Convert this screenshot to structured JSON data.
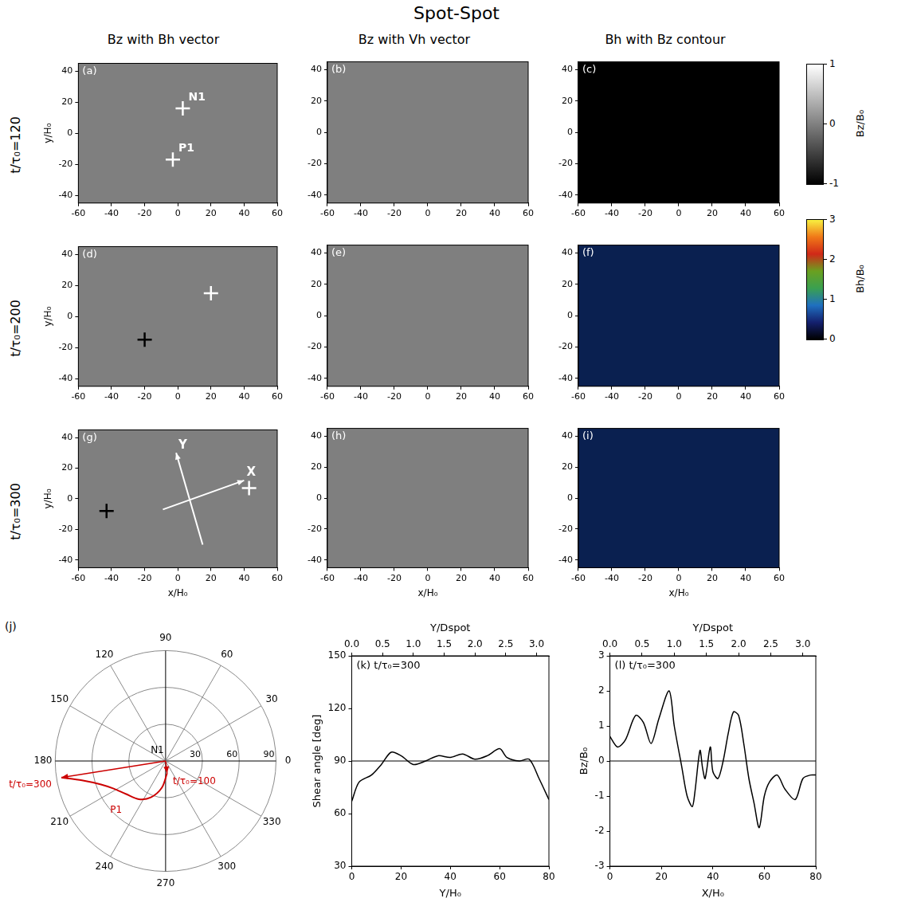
{
  "title": "Spot-Spot",
  "column_titles": [
    "Bz with Bh vector",
    "Bz with Vh vector",
    "Bh with Bz contour"
  ],
  "row_titles": [
    "t/τ₀=120",
    "t/τ₀=200",
    "t/τ₀=300"
  ],
  "colorbars": [
    {
      "label": "Bz/B₀",
      "range": [
        -1,
        1
      ],
      "ticks": [
        -1,
        0,
        1
      ],
      "colors": [
        "#000000",
        "#ffffff"
      ]
    },
    {
      "label": "Bh/B₀",
      "range": [
        0,
        3
      ],
      "ticks": [
        0,
        1,
        2,
        3
      ],
      "colors": [
        "#000000",
        "#14206e",
        "#1f70c0",
        "#3aa050",
        "#6aa020",
        "#d02818",
        "#f07818",
        "#f8f040"
      ]
    }
  ],
  "chart_data": [
    {
      "type": "map",
      "letter": "(a)",
      "color": "#7f7f7f",
      "marker": "cross",
      "ylabel": "y/H₀",
      "xlim": [
        -60,
        60
      ],
      "xticks": [
        -60,
        -40,
        -20,
        0,
        20,
        40,
        60
      ],
      "ylim": [
        -45,
        45
      ],
      "yticks": [
        -40,
        -20,
        0,
        20,
        40
      ],
      "points": [
        {
          "x": 3,
          "y": 16,
          "color": "#ffffff",
          "label": "N1"
        },
        {
          "x": -3,
          "y": -17,
          "color": "#ffffff",
          "label": "P1"
        }
      ]
    },
    {
      "type": "map",
      "letter": "(b)",
      "color": "#7f7f7f",
      "xlim": [
        -60,
        60
      ],
      "xticks": [
        -60,
        -40,
        -20,
        0,
        20,
        40,
        60
      ],
      "ylim": [
        -45,
        45
      ],
      "yticks": [
        -40,
        -20,
        0,
        20,
        40
      ]
    },
    {
      "type": "map",
      "letter": "(c)",
      "color": "#000000",
      "xlim": [
        -60,
        60
      ],
      "xticks": [
        -60,
        -40,
        -20,
        0,
        20,
        40,
        60
      ],
      "ylim": [
        -45,
        45
      ],
      "yticks": [
        -40,
        -20,
        0,
        20,
        40
      ]
    },
    {
      "type": "map",
      "letter": "(d)",
      "color": "#7f7f7f",
      "marker": "cross",
      "ylabel": "y/H₀",
      "xlim": [
        -60,
        60
      ],
      "xticks": [
        -60,
        -40,
        -20,
        0,
        20,
        40,
        60
      ],
      "ylim": [
        -45,
        45
      ],
      "yticks": [
        -40,
        -20,
        0,
        20,
        40
      ],
      "points": [
        {
          "x": 20,
          "y": 15,
          "color": "#ffffff"
        },
        {
          "x": -20,
          "y": -15,
          "color": "#000000"
        }
      ]
    },
    {
      "type": "map",
      "letter": "(e)",
      "color": "#7f7f7f",
      "xlim": [
        -60,
        60
      ],
      "xticks": [
        -60,
        -40,
        -20,
        0,
        20,
        40,
        60
      ],
      "ylim": [
        -45,
        45
      ],
      "yticks": [
        -40,
        -20,
        0,
        20,
        40
      ]
    },
    {
      "type": "map",
      "letter": "(f)",
      "color": "#0a2050",
      "xlim": [
        -60,
        60
      ],
      "xticks": [
        -60,
        -40,
        -20,
        0,
        20,
        40,
        60
      ],
      "ylim": [
        -45,
        45
      ],
      "yticks": [
        -40,
        -20,
        0,
        20,
        40
      ]
    },
    {
      "type": "map",
      "letter": "(g)",
      "color": "#7f7f7f",
      "marker": "cross",
      "xlabel": "x/H₀",
      "ylabel": "y/H₀",
      "xlim": [
        -60,
        60
      ],
      "xticks": [
        -60,
        -40,
        -20,
        0,
        20,
        40,
        60
      ],
      "ylim": [
        -45,
        45
      ],
      "yticks": [
        -40,
        -20,
        0,
        20,
        40
      ],
      "points": [
        {
          "x": 43,
          "y": 7,
          "color": "#ffffff"
        },
        {
          "x": -43,
          "y": -8,
          "color": "#000000"
        }
      ],
      "arrows": [
        {
          "from": [
            -9,
            -7
          ],
          "to": [
            40,
            12
          ],
          "label": "X",
          "color": "#ffffff"
        },
        {
          "from": [
            15,
            -30
          ],
          "to": [
            -1,
            30
          ],
          "label": "Y",
          "color": "#ffffff"
        }
      ]
    },
    {
      "type": "map",
      "letter": "(h)",
      "color": "#7f7f7f",
      "xlabel": "x/H₀",
      "xlim": [
        -60,
        60
      ],
      "xticks": [
        -60,
        -40,
        -20,
        0,
        20,
        40,
        60
      ],
      "ylim": [
        -45,
        45
      ],
      "yticks": [
        -40,
        -20,
        0,
        20,
        40
      ]
    },
    {
      "type": "map",
      "letter": "(i)",
      "color": "#0a2050",
      "xlabel": "x/H₀",
      "xlim": [
        -60,
        60
      ],
      "xticks": [
        -60,
        -40,
        -20,
        0,
        20,
        40,
        60
      ],
      "ylim": [
        -45,
        45
      ],
      "yticks": [
        -40,
        -20,
        0,
        20,
        40
      ]
    },
    {
      "type": "polar",
      "letter": "(j)",
      "rlim": [
        0,
        90
      ],
      "angle_ticks": [
        0,
        30,
        60,
        90,
        120,
        150,
        180,
        210,
        240,
        270,
        300,
        330
      ],
      "radius_ticks": [
        30,
        60,
        90
      ],
      "series": [
        {
          "color": "#cc0000",
          "angles": [
            277,
            262,
            248,
            235,
            220,
            208,
            200,
            193,
            189
          ],
          "radii": [
            10,
            22,
            32,
            38,
            42,
            48,
            56,
            70,
            86
          ]
        }
      ],
      "arrows": [
        {
          "angle": 277,
          "radius": 10,
          "color": "#cc0000"
        },
        {
          "angle": 189,
          "radius": 86,
          "color": "#cc0000"
        }
      ],
      "annotations": [
        {
          "text": "N1",
          "angle": 128,
          "radius": 11,
          "color": "#000000"
        },
        {
          "text": "P1",
          "angle": 225,
          "radius": 57,
          "color": "#cc0000"
        },
        {
          "text": "t/τ₀=100",
          "angle": 324,
          "radius": 29,
          "color": "#cc0000"
        },
        {
          "text": "t/τ₀=300",
          "angle": 190,
          "radius": 112,
          "color": "#cc0000"
        }
      ]
    },
    {
      "type": "line",
      "letter": "(k)",
      "title": "t/τ₀=300",
      "color": "#000000",
      "xlabel": "Y/H₀",
      "ylabel": "Shear angle [deg]",
      "x2label": "Y/Dspot",
      "xlim": [
        0,
        80
      ],
      "xticks": [
        0,
        20,
        40,
        60,
        80
      ],
      "x2lim": [
        0,
        3.2
      ],
      "x2ticks": [
        {
          "value": 0,
          "label": "0.0"
        },
        {
          "value": 0.5,
          "label": "0.5"
        },
        {
          "value": 1,
          "label": "1.0"
        },
        {
          "value": 1.5,
          "label": "1.5"
        },
        {
          "value": 2,
          "label": "2.0"
        },
        {
          "value": 2.5,
          "label": "2.5"
        },
        {
          "value": 3,
          "label": "3.0"
        }
      ],
      "ylim": [
        30,
        150
      ],
      "yticks": [
        30,
        60,
        90,
        120,
        150
      ],
      "hline": 90,
      "x": [
        0,
        3,
        8,
        12,
        16,
        20,
        25,
        30,
        35,
        40,
        45,
        50,
        55,
        60,
        63,
        68,
        72,
        76,
        80
      ],
      "values": [
        67,
        78,
        82,
        88,
        95,
        93,
        88,
        90,
        93,
        92,
        94,
        91,
        93,
        97,
        92,
        90,
        91,
        80,
        68
      ]
    },
    {
      "type": "line",
      "letter": "(l)",
      "title": "t/τ₀=300",
      "color": "#000000",
      "xlabel": "X/H₀",
      "ylabel": "Bz/B₀",
      "x2label": "Y/Dspot",
      "xlim": [
        0,
        80
      ],
      "xticks": [
        0,
        20,
        40,
        60,
        80
      ],
      "x2lim": [
        0,
        3.2
      ],
      "x2ticks": [
        {
          "value": 0,
          "label": "0.0"
        },
        {
          "value": 0.5,
          "label": "0.5"
        },
        {
          "value": 1,
          "label": "1.0"
        },
        {
          "value": 1.5,
          "label": "1.5"
        },
        {
          "value": 2,
          "label": "2.0"
        },
        {
          "value": 2.5,
          "label": "2.5"
        },
        {
          "value": 3,
          "label": "3.0"
        }
      ],
      "ylim": [
        -3,
        3
      ],
      "yticks": [
        -3,
        -2,
        -1,
        0,
        1,
        2,
        3
      ],
      "hline": 0,
      "x": [
        0,
        3,
        6,
        10,
        13,
        16,
        19,
        23,
        25,
        28,
        30,
        32,
        33,
        35,
        36,
        37,
        39,
        40,
        42,
        44,
        46,
        48,
        50,
        52,
        54,
        56,
        58,
        60,
        62,
        65,
        68,
        72,
        75,
        78,
        80
      ],
      "values": [
        0.7,
        0.4,
        0.6,
        1.3,
        1.1,
        0.5,
        1.2,
        2.0,
        1.0,
        -0.2,
        -1.0,
        -1.3,
        -0.9,
        0.3,
        -0.2,
        -0.5,
        0.4,
        -0.3,
        -0.5,
        0.0,
        0.8,
        1.4,
        1.3,
        0.5,
        -0.5,
        -1.2,
        -1.9,
        -1.0,
        -0.6,
        -0.4,
        -0.8,
        -1.1,
        -0.5,
        -0.4,
        -0.4
      ]
    }
  ]
}
